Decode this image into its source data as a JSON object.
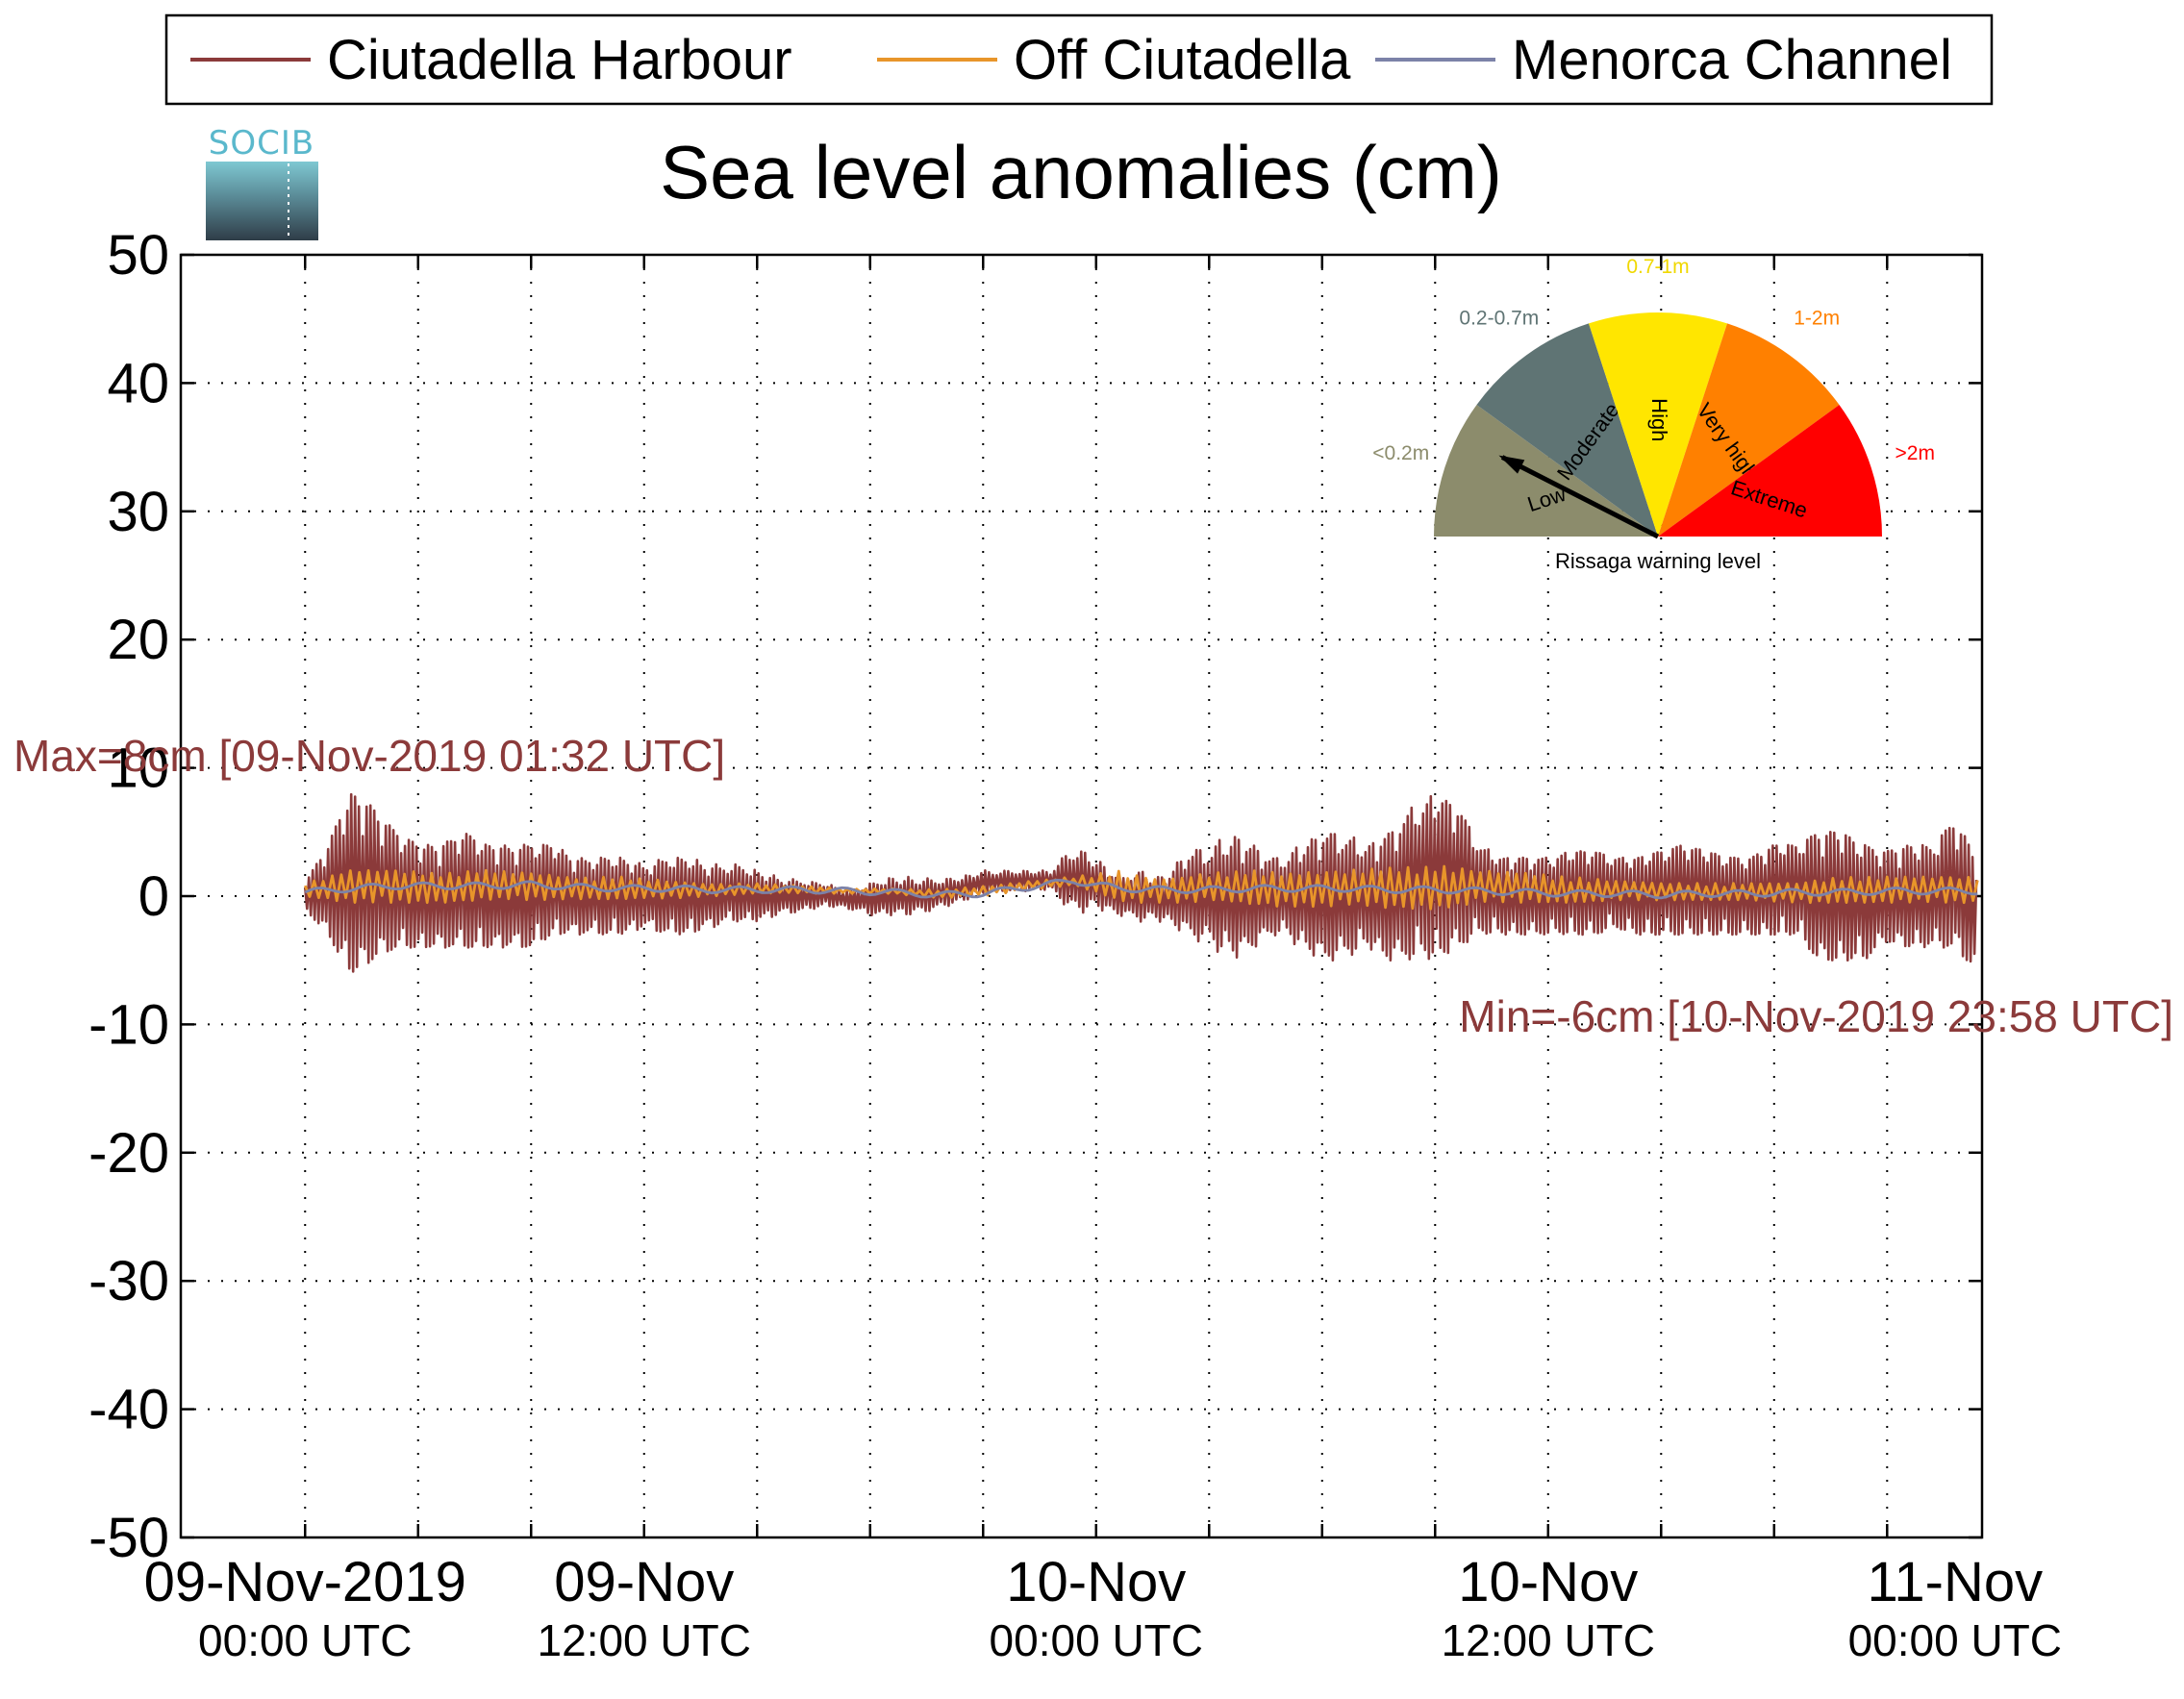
{
  "chart_data": {
    "type": "line",
    "title": "Sea level anomalies (cm)",
    "xlabel": "",
    "ylabel": "",
    "ylim": [
      -50,
      50
    ],
    "yticks": [
      50,
      40,
      30,
      20,
      10,
      0,
      -10,
      -20,
      -30,
      -40,
      -50
    ],
    "yticklabels": [
      "50",
      "40",
      "30",
      "20",
      "10",
      "0",
      "-10",
      "-20",
      "-30",
      "-40",
      "-50"
    ],
    "xlim_hours": [
      -5.5,
      74.2
    ],
    "x_unit": "hours after 09-Nov-2019 00:00 UTC",
    "grid": true,
    "legend_position": "top, outside the axes",
    "xticks": [
      {
        "hours": 0,
        "label1": "09-Nov-2019",
        "label2": "00:00 UTC"
      },
      {
        "hours": 15,
        "label1": "09-Nov",
        "label2": "12:00 UTC"
      },
      {
        "hours": 35,
        "label1": "10-Nov",
        "label2": "00:00 UTC"
      },
      {
        "hours": 55,
        "label1": "10-Nov",
        "label2": "12:00 UTC"
      },
      {
        "hours": 73,
        "label1": "11-Nov",
        "label2": "00:00 UTC"
      }
    ],
    "minor_xticks_hours": [
      0,
      5,
      10,
      15,
      20,
      25,
      30,
      35,
      40,
      45,
      50,
      55,
      60,
      65,
      70
    ],
    "series": [
      {
        "name": "Ciutadella Harbour",
        "color": "#8b3a3a",
        "x": [
          0,
          1,
          2,
          3,
          4,
          5,
          6,
          7,
          8,
          9,
          10,
          11,
          12,
          13,
          14,
          15,
          16,
          17,
          18,
          19,
          20,
          21,
          22,
          23,
          24,
          25,
          26,
          27,
          28,
          29,
          30,
          31,
          32,
          33,
          34,
          35,
          36,
          37,
          38,
          39,
          40,
          41,
          42,
          43,
          44,
          45,
          46,
          47,
          48,
          49,
          50,
          51,
          52,
          53,
          54,
          55,
          56,
          57,
          58,
          59,
          60,
          61,
          62,
          63,
          64,
          65,
          66,
          67,
          68,
          69,
          70,
          71,
          72,
          73,
          74
        ],
        "max": [
          1,
          4,
          8,
          7,
          5,
          4,
          4,
          5,
          4,
          4,
          4,
          4,
          3,
          3,
          3,
          2.5,
          3,
          3,
          2.5,
          2.5,
          2,
          1.5,
          1.2,
          1,
          0.5,
          1,
          1.5,
          1.5,
          1.3,
          1.5,
          2,
          2,
          2,
          2,
          4,
          3,
          1.5,
          2,
          1.5,
          3.5,
          4,
          5,
          4,
          3,
          4,
          5,
          5,
          4,
          5,
          7,
          8,
          7,
          4,
          3,
          3,
          3,
          3.5,
          3.5,
          3,
          3,
          3.5,
          4,
          3.5,
          3,
          3,
          4,
          4,
          5,
          5,
          4,
          3.5,
          4,
          4,
          6,
          3
        ],
        "min": [
          -1,
          -3,
          -6,
          -5,
          -4,
          -4,
          -4,
          -4,
          -4,
          -4,
          -4,
          -3,
          -3,
          -3,
          -3,
          -2.5,
          -3,
          -3,
          -2.5,
          -2,
          -2,
          -1.5,
          -1.2,
          -0.8,
          -1,
          -1.5,
          -1.5,
          -1.5,
          -1,
          -0.5,
          0.2,
          0.3,
          0.4,
          0.5,
          -1.5,
          -1,
          -1.5,
          -2,
          -2,
          -3,
          -4,
          -5,
          -4,
          -3,
          -4,
          -5,
          -5,
          -4,
          -5,
          -5,
          -5,
          -4,
          -3,
          -3,
          -3,
          -3,
          -3,
          -3,
          -2.5,
          -3,
          -3,
          -3,
          -3,
          -3,
          -3,
          -3,
          -3,
          -5,
          -5,
          -5,
          -3.5,
          -4,
          -4,
          -4,
          -6
        ]
      },
      {
        "name": "Off Ciutadella",
        "color": "#e8952a",
        "x": [
          0,
          2,
          4,
          6,
          8,
          10,
          12,
          14,
          16,
          18,
          20,
          22,
          24,
          26,
          28,
          30,
          32,
          34,
          36,
          38,
          40,
          42,
          44,
          46,
          48,
          50,
          52,
          54,
          56,
          58,
          60,
          62,
          64,
          66,
          68,
          70,
          72,
          74
        ],
        "max": [
          1,
          2,
          2,
          1.8,
          2,
          1.8,
          1.5,
          1.5,
          1.2,
          1,
          1,
          0.8,
          0.6,
          0.6,
          0.5,
          0.8,
          1.2,
          1.5,
          2,
          1.5,
          1.8,
          2,
          2,
          2,
          2.2,
          2.5,
          2,
          1.8,
          1.5,
          1.2,
          1,
          1,
          1,
          1,
          1.5,
          1.5,
          1.5,
          1.5
        ],
        "min": [
          0,
          -0.5,
          -0.5,
          -0.5,
          -0.3,
          -0.3,
          -0.2,
          -0.3,
          -0.2,
          0,
          0.2,
          0.2,
          0.2,
          0.2,
          -0.2,
          0,
          0.5,
          0.8,
          -0.5,
          -0.5,
          -0.5,
          -0.8,
          -0.8,
          -0.8,
          -1,
          -1,
          -0.5,
          -0.5,
          -0.5,
          -0.3,
          -0.3,
          -0.3,
          -0.3,
          -0.5,
          -0.5,
          -0.5,
          -0.5,
          -0.5
        ]
      },
      {
        "name": "Menorca Channel",
        "color": "#7c82a8",
        "x": [
          0,
          2,
          4,
          6,
          8,
          10,
          12,
          14,
          16,
          18,
          20,
          22,
          24,
          26,
          28,
          30,
          32,
          34,
          36,
          38,
          40,
          42,
          44,
          46,
          48,
          50,
          52,
          54,
          56,
          58,
          60,
          62,
          64,
          66,
          68,
          70,
          72,
          74
        ],
        "y": [
          0.3,
          0.6,
          0.8,
          0.8,
          0.8,
          0.9,
          0.7,
          0.6,
          0.6,
          0.5,
          0.5,
          0.5,
          0.4,
          0.3,
          0.1,
          0.2,
          0.7,
          1.2,
          0.6,
          0.5,
          0.5,
          0.6,
          0.6,
          0.6,
          0.5,
          0.5,
          0.4,
          0.3,
          0.2,
          0.2,
          0.1,
          0.2,
          0.2,
          0.3,
          0.3,
          0.4,
          0.4,
          0.4
        ]
      }
    ],
    "annotations": [
      {
        "key": "max",
        "text": "Max=8cm [09-Nov-2019 01:32 UTC]",
        "color": "#8b3a3a"
      },
      {
        "key": "min",
        "text": "Min=-6cm [10-Nov-2019 23:58 UTC]",
        "color": "#8b3a3a"
      }
    ]
  },
  "logo": {
    "text": "SOCIB"
  },
  "gauge": {
    "title": "Rissaga warning level",
    "needle_level": "Low",
    "sectors": [
      {
        "name": "Low",
        "range_label": "<0.2m",
        "color": "#8c8c6c",
        "label_color": "#8c8c6c"
      },
      {
        "name": "Moderate",
        "range_label": "0.2-0.7m",
        "color": "#5f7474",
        "label_color": "#5f7474"
      },
      {
        "name": "High",
        "range_label": "0.7-1m",
        "color": "#ffe600",
        "label_color": "#f0d800"
      },
      {
        "name": "Very high",
        "range_label": "1-2m",
        "color": "#ff8000",
        "label_color": "#ff8000"
      },
      {
        "name": "Extreme",
        "range_label": ">2m",
        "color": "#ff0000",
        "label_color": "#ff0000"
      }
    ]
  }
}
